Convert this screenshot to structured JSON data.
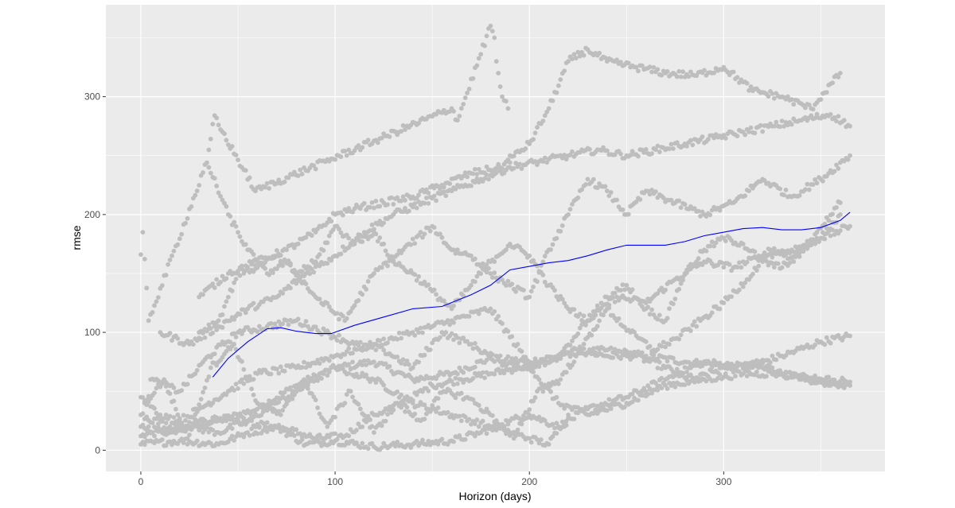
{
  "chart_data": {
    "type": "scatter",
    "xlabel": "Horizon (days)",
    "ylabel": "rmse",
    "xlim": [
      -18,
      383
    ],
    "ylim": [
      -18,
      378
    ],
    "x_ticks": [
      0,
      100,
      200,
      300
    ],
    "x_tick_labels": [
      "0",
      "100",
      "200",
      "300"
    ],
    "y_ticks": [
      0,
      100,
      200,
      300
    ],
    "y_tick_labels": [
      "0",
      "100",
      "200",
      "300"
    ],
    "grid": true,
    "legend": "none",
    "colors": {
      "panel": "#ebebeb",
      "grid": "#ffffff",
      "points": "#bebebe",
      "smooth": "#0000ff"
    },
    "smooth": {
      "x": [
        37,
        45,
        55,
        65,
        72,
        80,
        90,
        98,
        110,
        125,
        140,
        155,
        170,
        180,
        190,
        200,
        210,
        220,
        230,
        240,
        250,
        260,
        270,
        280,
        290,
        300,
        310,
        320,
        330,
        340,
        350,
        360,
        365
      ],
      "y": [
        62,
        78,
        92,
        103,
        104,
        101,
        99,
        99,
        106,
        113,
        120,
        122,
        132,
        140,
        153,
        156,
        159,
        161,
        165,
        170,
        174,
        174,
        174,
        177,
        182,
        185,
        188,
        189,
        187,
        187,
        189,
        195,
        202
      ]
    },
    "point_series": [
      {
        "x": [
          0,
          20,
          40,
          60,
          80,
          100,
          120,
          140,
          160,
          180,
          200,
          220,
          240,
          260,
          280,
          300,
          320,
          340,
          365
        ],
        "y": [
          12,
          18,
          25,
          35,
          55,
          70,
          75,
          60,
          65,
          78,
          75,
          82,
          85,
          80,
          75,
          72,
          70,
          60,
          55
        ]
      },
      {
        "x": [
          0,
          15,
          30,
          45,
          60,
          75,
          90,
          105,
          120,
          135,
          150,
          165,
          180,
          195,
          210,
          225,
          240,
          255,
          270,
          285,
          300,
          315,
          330,
          345,
          365
        ],
        "y": [
          20,
          15,
          25,
          28,
          22,
          18,
          10,
          12,
          30,
          40,
          55,
          60,
          65,
          70,
          75,
          85,
          80,
          80,
          70,
          60,
          70,
          75,
          65,
          60,
          55
        ]
      },
      {
        "x": [
          0,
          20,
          40,
          55,
          70,
          85,
          100,
          120,
          140,
          160,
          175,
          190,
          200,
          215,
          230,
          250,
          270,
          290,
          310,
          330,
          350,
          365
        ],
        "y": [
          5,
          8,
          5,
          15,
          20,
          5,
          8,
          3,
          5,
          8,
          15,
          25,
          30,
          20,
          35,
          45,
          60,
          75,
          70,
          80,
          92,
          97
        ]
      },
      {
        "x": [
          0,
          10,
          25,
          40,
          55,
          70,
          85,
          100,
          120,
          140,
          160,
          180,
          190,
          200,
          210,
          220
        ],
        "y": [
          45,
          30,
          20,
          15,
          25,
          40,
          55,
          70,
          60,
          40,
          30,
          20,
          15,
          10,
          5,
          30
        ]
      },
      {
        "x": [
          0,
          15,
          30,
          45,
          60,
          80,
          100,
          120,
          140,
          160,
          180,
          195,
          205,
          215,
          230,
          250,
          270,
          290,
          310,
          330,
          350,
          365
        ],
        "y": [
          30,
          20,
          35,
          50,
          65,
          70,
          80,
          90,
          100,
          110,
          120,
          85,
          60,
          40,
          30,
          40,
          55,
          60,
          65,
          65,
          60,
          58
        ]
      },
      {
        "x": [
          5,
          20,
          35,
          50,
          65,
          80,
          95,
          110,
          125,
          140,
          155,
          170,
          185,
          200,
          215,
          230,
          245,
          260,
          275,
          290,
          305,
          320,
          335,
          350,
          365
        ],
        "y": [
          60,
          50,
          80,
          100,
          105,
          110,
          100,
          90,
          85,
          70,
          100,
          90,
          75,
          70,
          80,
          110,
          130,
          125,
          145,
          160,
          155,
          165,
          170,
          180,
          190
        ]
      },
      {
        "x": [
          10,
          25,
          40,
          55,
          70,
          85,
          100,
          115,
          130,
          145,
          160,
          175,
          190,
          205,
          220,
          235,
          250,
          265,
          280,
          295,
          310,
          325,
          340,
          355,
          365
        ],
        "y": [
          100,
          90,
          105,
          120,
          130,
          150,
          165,
          185,
          200,
          210,
          220,
          230,
          240,
          245,
          250,
          255,
          250,
          255,
          260,
          265,
          270,
          275,
          280,
          285,
          275
        ]
      },
      {
        "x": [
          30,
          45,
          60,
          75,
          90,
          100,
          110,
          125,
          140,
          155,
          170,
          185,
          200,
          210,
          220,
          230,
          240,
          255,
          270,
          285,
          300,
          315,
          330,
          345,
          360
        ],
        "y": [
          130,
          150,
          160,
          170,
          185,
          200,
          205,
          210,
          215,
          225,
          235,
          240,
          260,
          290,
          330,
          340,
          330,
          325,
          320,
          318,
          325,
          305,
          300,
          290,
          320
        ]
      },
      {
        "x": [
          35,
          45,
          55,
          65,
          75,
          90,
          105,
          120,
          135,
          150,
          160,
          170,
          180,
          190,
          200,
          210,
          220,
          230,
          240,
          250,
          260,
          275,
          290,
          305,
          320,
          335,
          350,
          365
        ],
        "y": [
          240,
          200,
          170,
          150,
          160,
          130,
          110,
          150,
          170,
          190,
          170,
          165,
          150,
          140,
          130,
          170,
          200,
          230,
          220,
          200,
          220,
          210,
          200,
          210,
          230,
          215,
          230,
          250
        ]
      },
      {
        "x": [
          30,
          40,
          50,
          60,
          70,
          80,
          90,
          100,
          110,
          120,
          130,
          140,
          150,
          160,
          170,
          180,
          190,
          200,
          210,
          220,
          230,
          240,
          250,
          260,
          270,
          280,
          290,
          300,
          310,
          320,
          330,
          340,
          350,
          360
        ],
        "y": [
          100,
          110,
          150,
          155,
          165,
          150,
          160,
          190,
          175,
          185,
          160,
          150,
          135,
          120,
          140,
          160,
          175,
          165,
          140,
          120,
          110,
          130,
          140,
          120,
          110,
          150,
          170,
          180,
          175,
          160,
          155,
          170,
          180,
          200
        ]
      },
      {
        "x": [
          2,
          12,
          24,
          36,
          48,
          60,
          72,
          84,
          96,
          108,
          120,
          132,
          144,
          156,
          168,
          180,
          192,
          204,
          216,
          228,
          240,
          252,
          264,
          276,
          288,
          300,
          312,
          324,
          336,
          348,
          360
        ],
        "y": [
          40,
          60,
          10,
          70,
          90,
          40,
          30,
          60,
          20,
          50,
          15,
          40,
          25,
          50,
          45,
          30,
          10,
          50,
          60,
          90,
          120,
          100,
          85,
          95,
          110,
          125,
          145,
          170,
          160,
          185,
          210
        ]
      },
      {
        "x": [
          0,
          1,
          4,
          34,
          38,
          40,
          59,
          160,
          163,
          180,
          182,
          183,
          186,
          189,
          190
        ],
        "y": [
          166,
          185,
          110,
          244,
          284,
          276,
          220,
          290,
          280,
          360,
          350,
          330,
          300,
          290,
          250
        ]
      }
    ]
  }
}
